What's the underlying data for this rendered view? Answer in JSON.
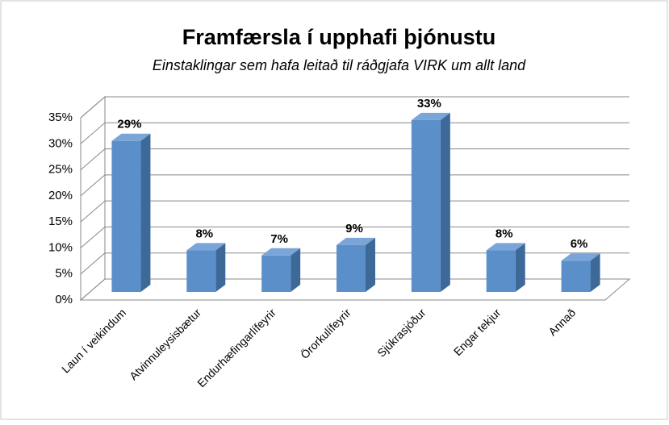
{
  "chart_data": {
    "type": "bar3d",
    "title": "Framfærsla í upphafi þjónustu",
    "subtitle": "Einstaklingar sem hafa leitað til ráðgjafa VIRK um allt land",
    "categories": [
      "Laun í veikindum",
      "Atvinnuleysisbætur",
      "Endurhæfingarlífeyrir",
      "Örorkulífeyrir",
      "Sjúkrasjóður",
      "Engar tekjur",
      "Annað"
    ],
    "values": [
      29,
      8,
      7,
      9,
      33,
      8,
      6
    ],
    "value_labels": [
      "29%",
      "8%",
      "7%",
      "9%",
      "33%",
      "8%",
      "6%"
    ],
    "color": "#5b8fc9",
    "ylim": [
      0,
      35
    ],
    "yticks": [
      {
        "value": 0,
        "label": "0%"
      },
      {
        "value": 5,
        "label": "5%"
      },
      {
        "value": 10,
        "label": "10%"
      },
      {
        "value": 15,
        "label": "15%"
      },
      {
        "value": 20,
        "label": "20%"
      },
      {
        "value": 25,
        "label": "25%"
      },
      {
        "value": 30,
        "label": "30%"
      },
      {
        "value": 35,
        "label": "35%"
      }
    ],
    "grid": true
  }
}
